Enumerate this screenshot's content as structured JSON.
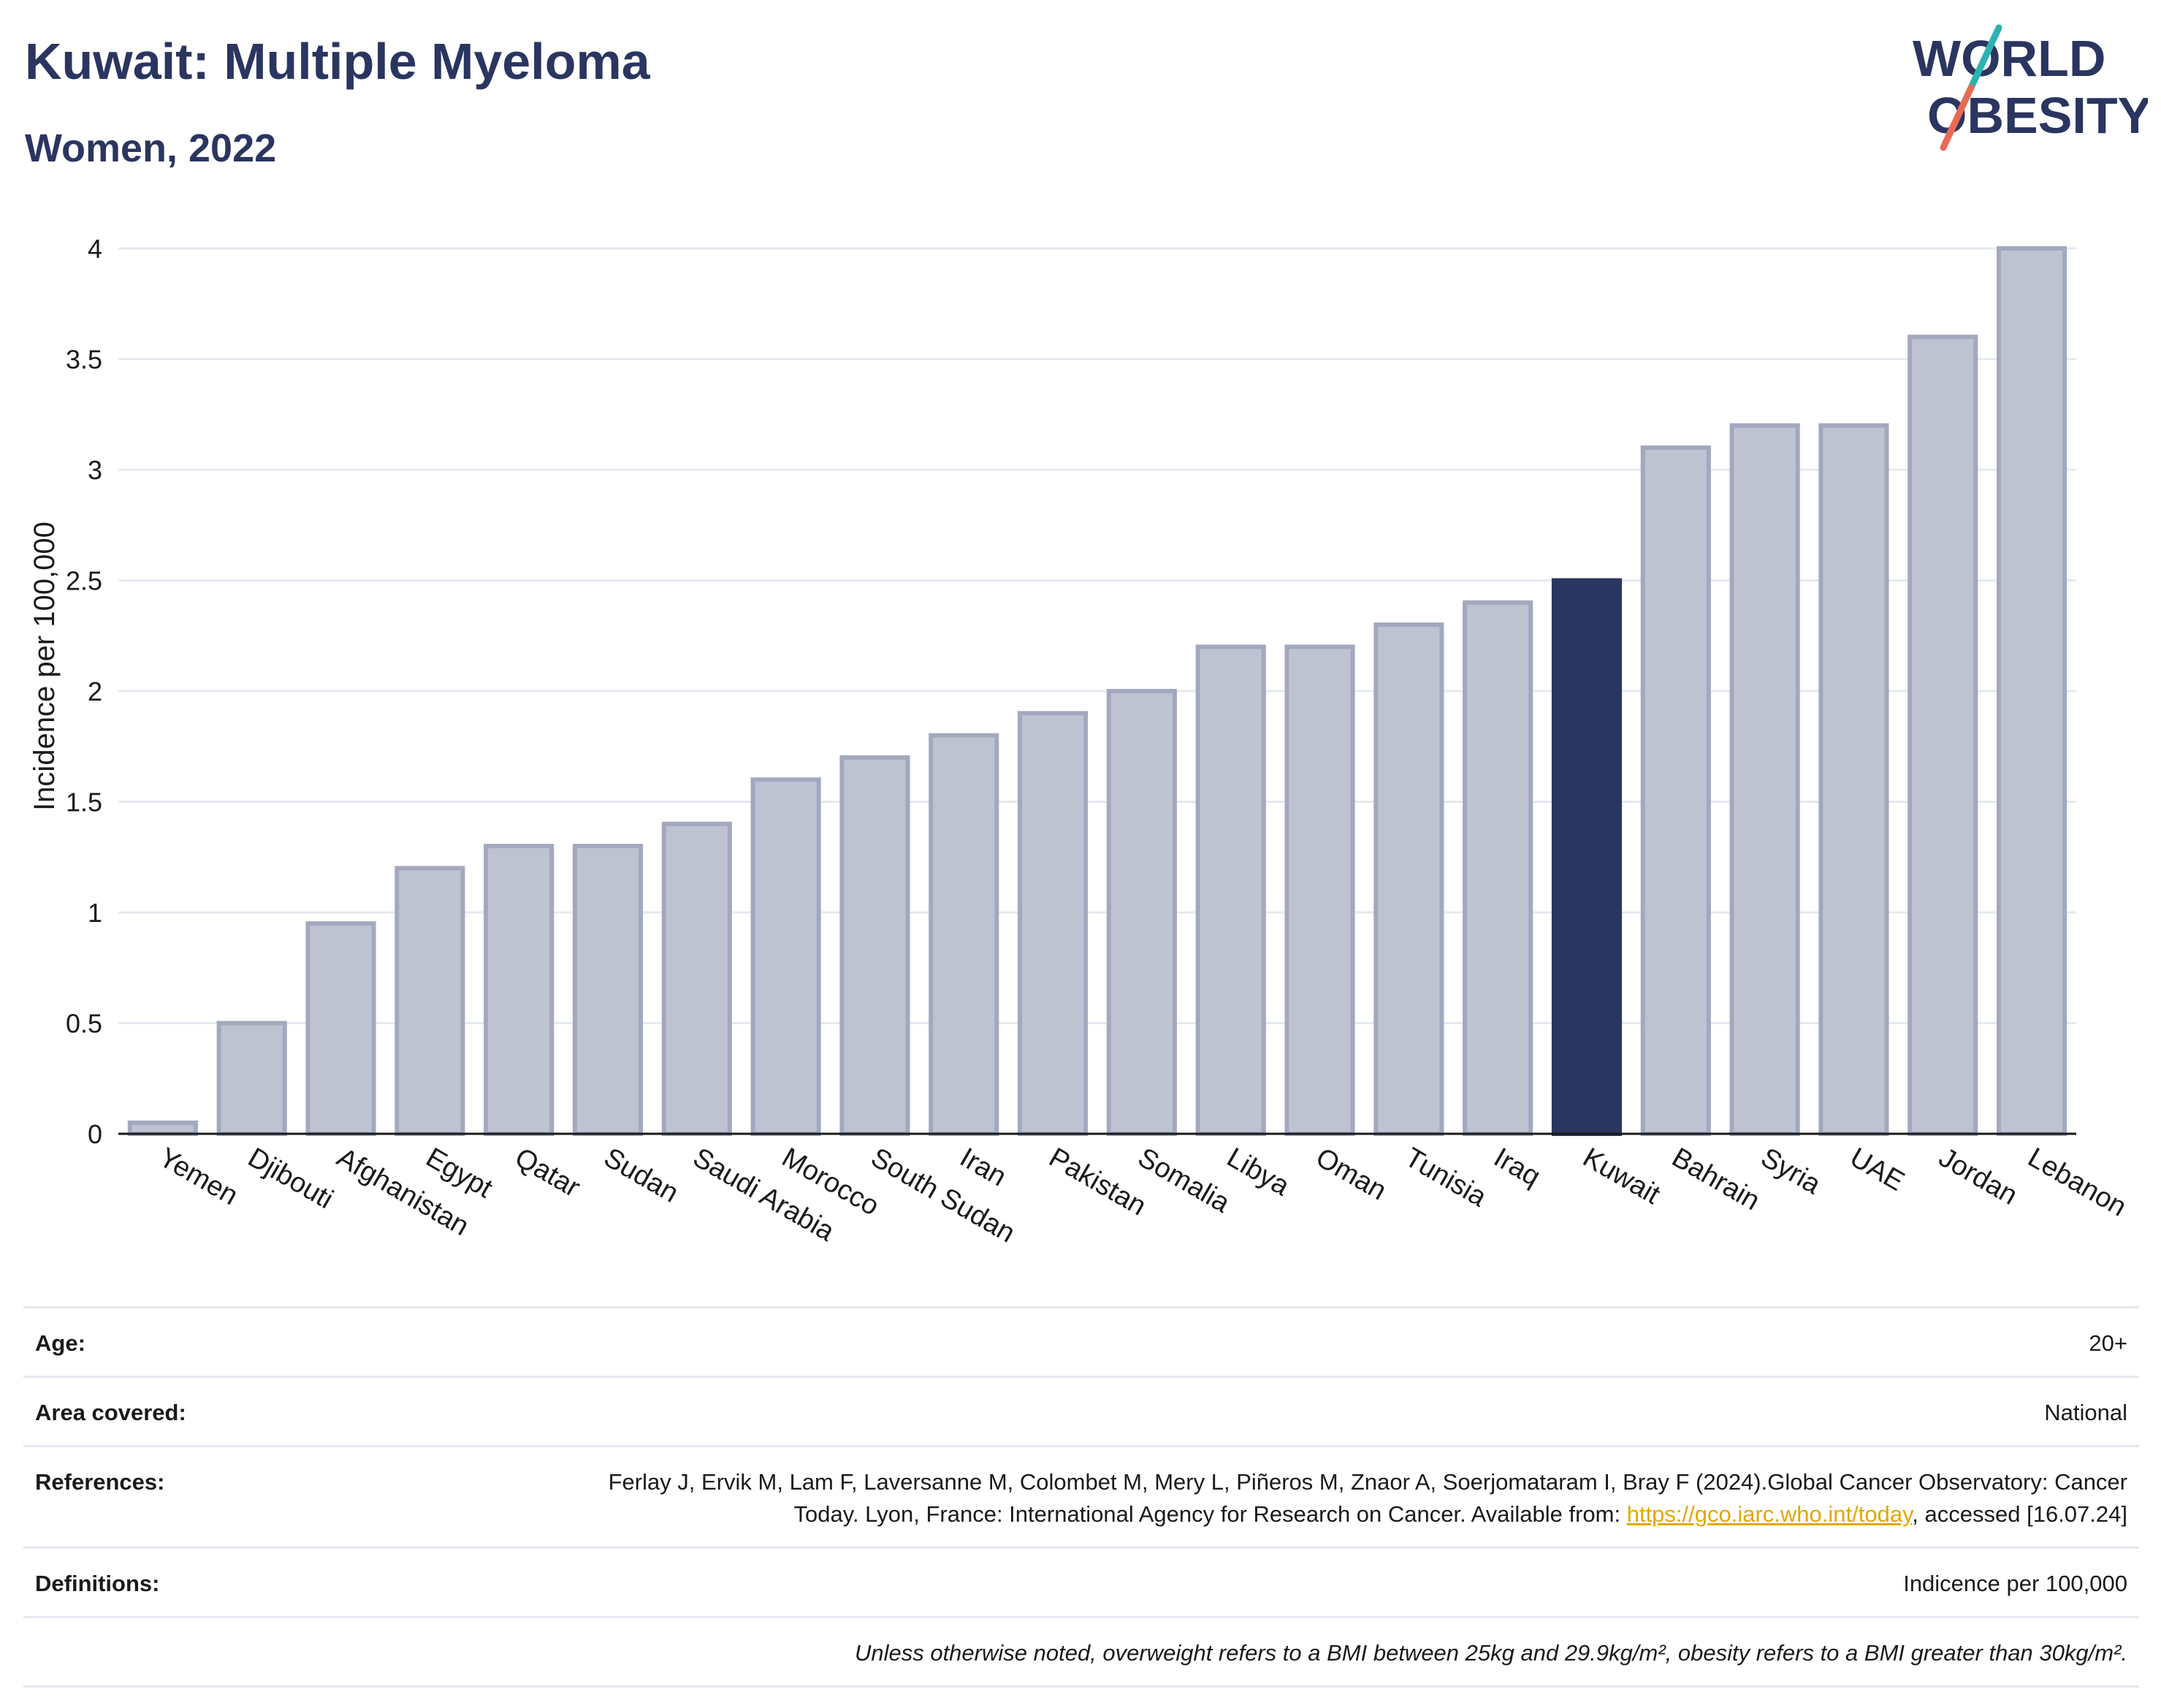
{
  "title": "Kuwait: Multiple Myeloma",
  "subtitle": "Women, 2022",
  "logo": {
    "line1": "WORLD",
    "line2": "OBESITY"
  },
  "colors": {
    "title": "#2a3560",
    "bar_default": "#bfc3d1",
    "bar_default_stroke": "#a3a8bf",
    "bar_highlight": "#2a3560",
    "grid": "#e6e9f0",
    "logo_teal": "#2bb3b1",
    "logo_coral": "#e86a55",
    "link": "#e0a800"
  },
  "chart_data": {
    "type": "bar",
    "ylabel": "Incidence per 100,000",
    "xlabel": "",
    "ylim": [
      0,
      4
    ],
    "yticks": [
      "0",
      "0.5",
      "1",
      "1.5",
      "2",
      "2.5",
      "3",
      "3.5",
      "4"
    ],
    "grid": true,
    "highlight": "Kuwait",
    "categories": [
      "Yemen",
      "Djibouti",
      "Afghanistan",
      "Egypt",
      "Qatar",
      "Sudan",
      "Saudi Arabia",
      "Morocco",
      "South Sudan",
      "Iran",
      "Pakistan",
      "Somalia",
      "Libya",
      "Oman",
      "Tunisia",
      "Iraq",
      "Kuwait",
      "Bahrain",
      "Syria",
      "UAE",
      "Jordan",
      "Lebanon"
    ],
    "values": [
      0.05,
      0.5,
      0.95,
      1.2,
      1.3,
      1.3,
      1.4,
      1.6,
      1.7,
      1.8,
      1.9,
      2.0,
      2.2,
      2.2,
      2.3,
      2.4,
      2.5,
      3.1,
      3.2,
      3.2,
      3.6,
      4.0
    ]
  },
  "info": {
    "age_label": "Age:",
    "age_value": "20+",
    "area_label": "Area covered:",
    "area_value": "National",
    "references_label": "References:",
    "references_text_1": "Ferlay J, Ervik M, Lam F, Laversanne M, Colombet M, Mery L, Piñeros M, Znaor A, Soerjomataram I, Bray F (2024).Global Cancer Observatory: Cancer Today. Lyon, France: International Agency for Research on Cancer. Available from: ",
    "references_link": "https://gco.iarc.who.int/today",
    "references_text_2": ", accessed [16.07.24]",
    "definitions_label": "Definitions:",
    "definitions_value": "Indicence per 100,000",
    "note": "Unless otherwise noted, overweight refers to a BMI between 25kg and 29.9kg/m², obesity refers to a BMI greater than 30kg/m²."
  }
}
